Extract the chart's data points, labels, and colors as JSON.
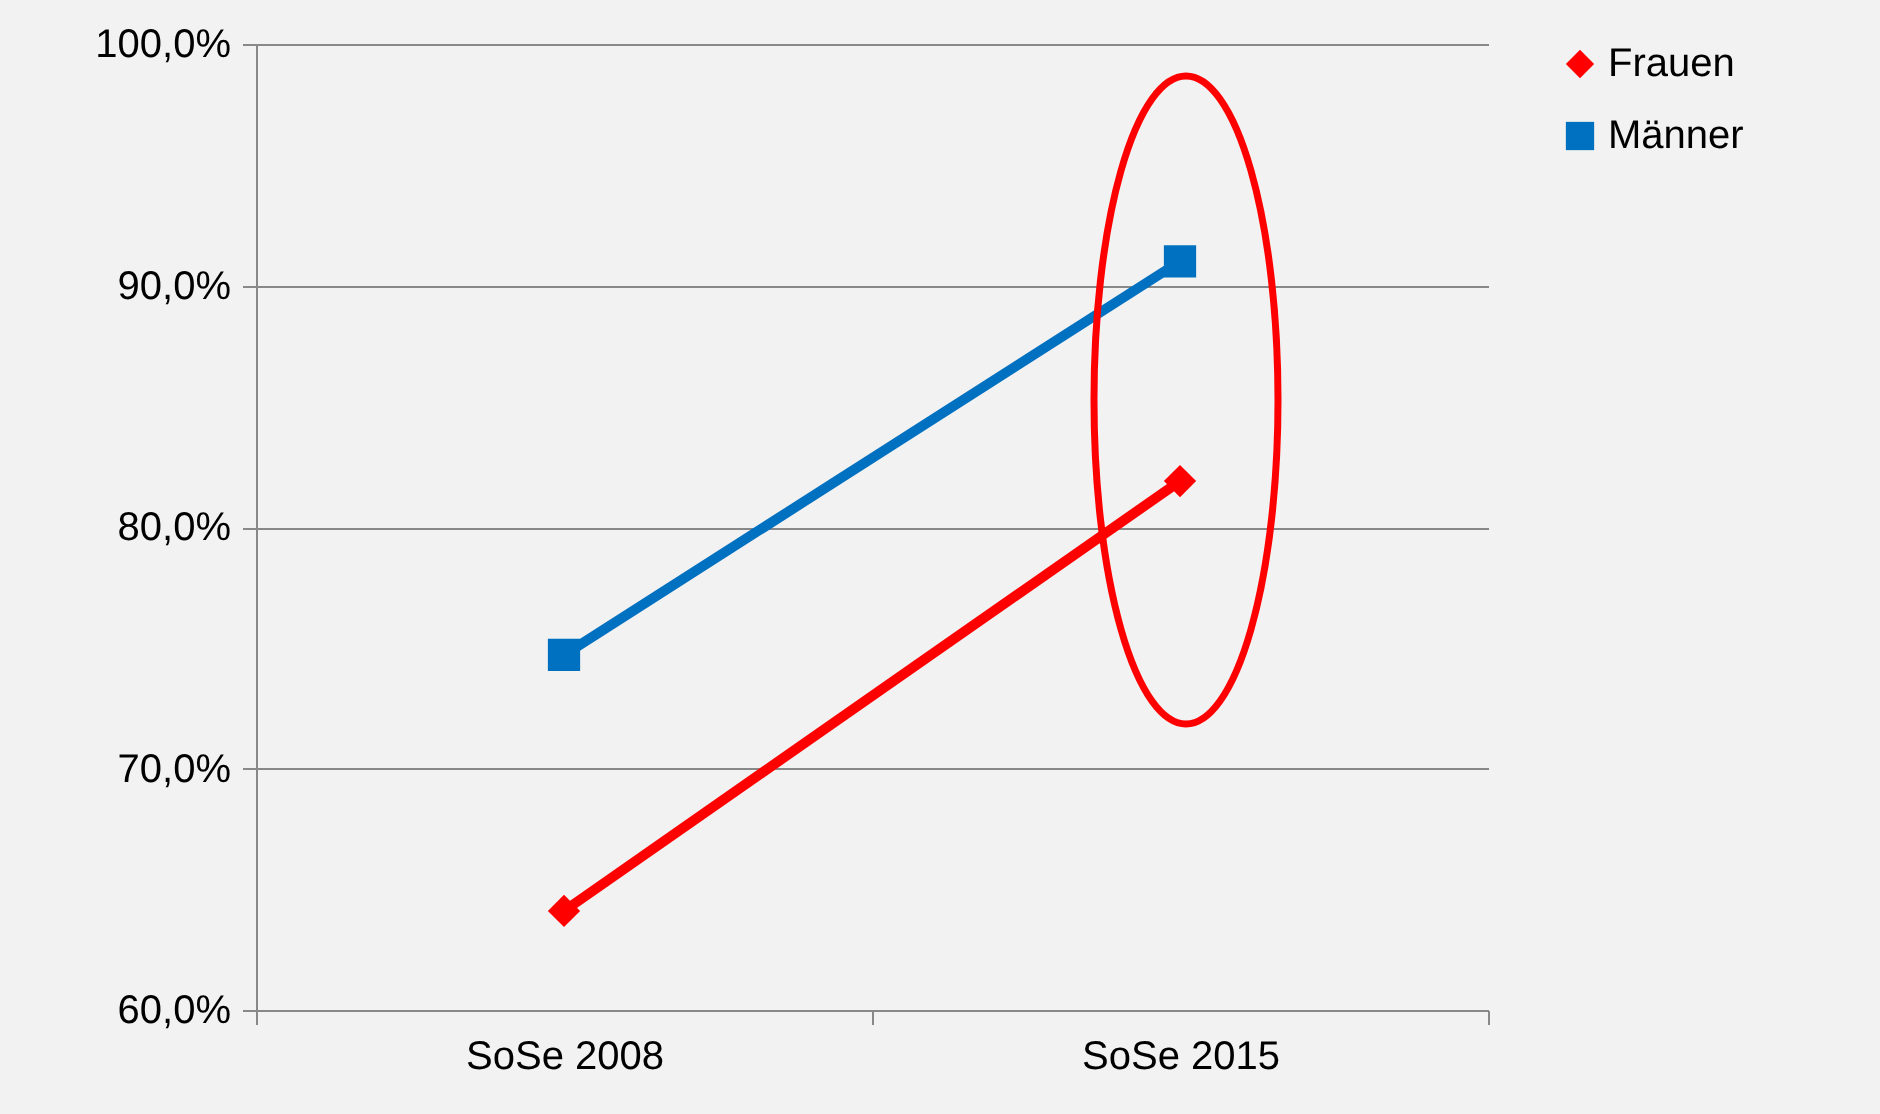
{
  "chart_data": {
    "type": "line",
    "categories": [
      "SoSe 2008",
      "SoSe 2015"
    ],
    "series": [
      {
        "name": "Frauen",
        "color": "#ff0000",
        "marker": "diamond",
        "values": [
          64.1,
          81.9
        ]
      },
      {
        "name": "Männer",
        "color": "#0070c0",
        "marker": "square",
        "values": [
          74.7,
          91.0
        ]
      }
    ],
    "ylim": [
      60,
      100
    ],
    "yticks": [
      {
        "value": 60,
        "label": "60,0%"
      },
      {
        "value": 70,
        "label": "70,0%"
      },
      {
        "value": 80,
        "label": "80,0%"
      },
      {
        "value": 90,
        "label": "90,0%"
      },
      {
        "value": 100,
        "label": "100,0%"
      }
    ],
    "grid": "y",
    "legend": "right",
    "line_style": "solid"
  }
}
